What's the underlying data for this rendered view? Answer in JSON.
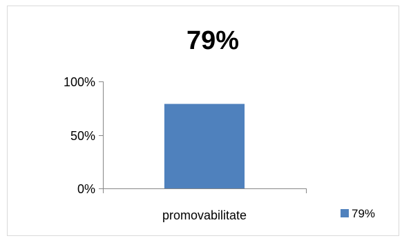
{
  "chart_data": {
    "type": "bar",
    "title": "79%",
    "categories": [
      "promovabilitate"
    ],
    "series": [
      {
        "name": "79%",
        "values": [
          79
        ]
      }
    ],
    "ylim": [
      0,
      100
    ],
    "y_ticks": [
      {
        "value": 0,
        "label": "0%"
      },
      {
        "value": 50,
        "label": "50%"
      },
      {
        "value": 100,
        "label": "100%"
      }
    ],
    "grid": false,
    "legend_position": "bottom-right",
    "bar_color": "#4F81BD",
    "axis_color": "#868686",
    "border_color": "#D9D9D9"
  }
}
